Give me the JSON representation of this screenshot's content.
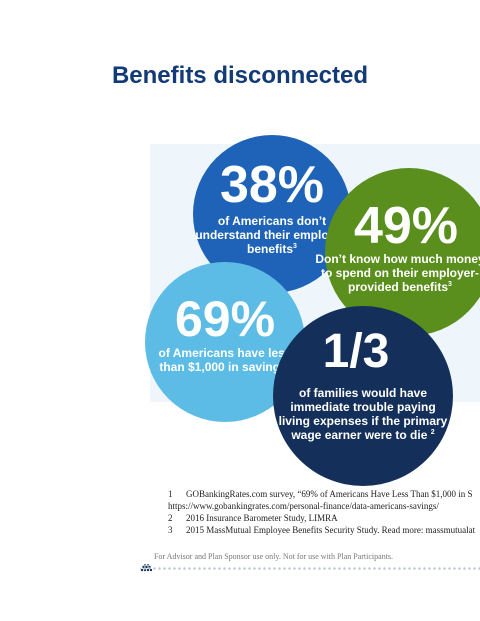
{
  "title": "Benefits disconnected",
  "stats": {
    "c1": {
      "value": "38%",
      "text": "of Americans don’t understand their employee benefits",
      "ref": "3"
    },
    "c2": {
      "value": "49%",
      "text": "Don’t know how much money to spend on their employer-provided benefits",
      "ref": "3"
    },
    "c3": {
      "value": "69%",
      "text": "of Americans have less than $1,000 in savings",
      "ref": "1"
    },
    "c4": {
      "value": "1/3",
      "text": "of families would have immediate trouble paying living expenses if the primary wage earner were to die",
      "ref": "2"
    }
  },
  "colors": {
    "title": "#123a77",
    "c1": "#1e63b7",
    "c2": "#5a8e1d",
    "c3": "#5dbce5",
    "c4": "#14305a",
    "panel": "#eef6fb"
  },
  "footnotes": {
    "n1": "1",
    "t1": "GOBankingRates.com survey, “69% of Americans Have Less Than $1,000 in S",
    "t1b": "https://www.gobankingrates.com/personal-finance/data-americans-savings/",
    "n2": "2",
    "t2": "2016 Insurance Barometer Study, LIMRA",
    "n3": "3",
    "t3": "2015 MassMutual Employee Benefits Security Study. Read more: massmutualat"
  },
  "disclaimer": "For Advisor and Plan Sponsor use only. Not for use with Plan Participants.",
  "logo_icon": "dot-cluster-logo-icon"
}
